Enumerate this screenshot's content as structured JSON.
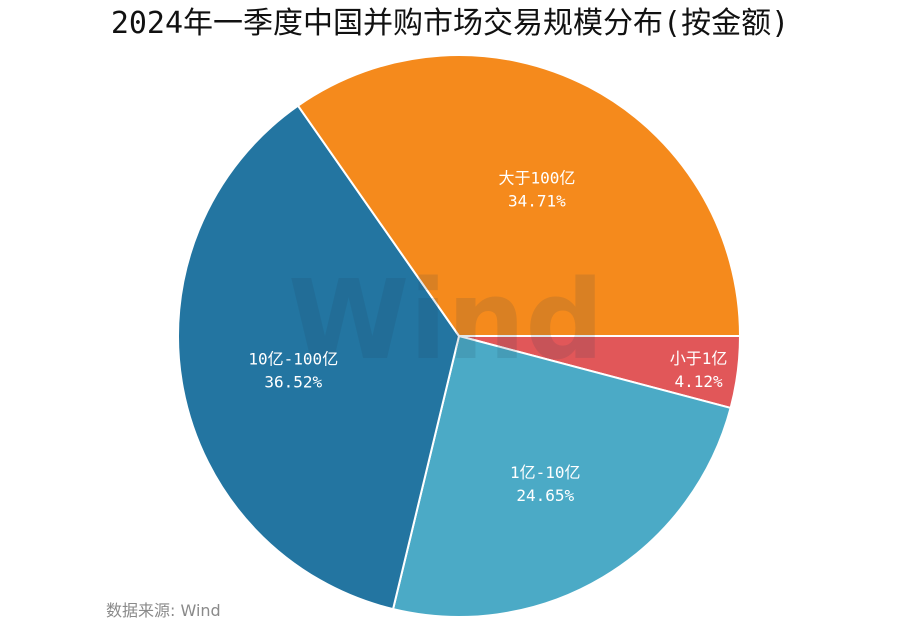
{
  "chart_data": {
    "type": "pie",
    "title": "2024年一季度中国并购市场交易规模分布(按金额)",
    "slices": [
      {
        "label": "小于1亿",
        "value": 4.12,
        "value_label": "4.12%",
        "color": "#E15759"
      },
      {
        "label": "1亿-10亿",
        "value": 24.65,
        "value_label": "24.65%",
        "color": "#4BAAC6"
      },
      {
        "label": "10亿-100亿",
        "value": 36.52,
        "value_label": "36.52%",
        "color": "#2375A1"
      },
      {
        "label": "大于100亿",
        "value": 34.71,
        "value_label": "34.71%",
        "color": "#F58A1C"
      }
    ],
    "start_direction": "east",
    "direction": "clockwise",
    "watermark": "Wind",
    "source": "数据来源: Wind"
  }
}
